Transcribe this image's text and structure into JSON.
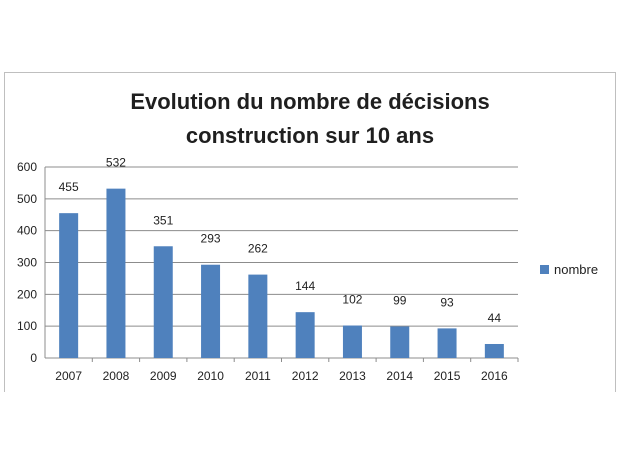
{
  "chart_data": {
    "type": "bar",
    "title_lines": [
      "Evolution du nombre de décisions",
      "construction sur 10 ans"
    ],
    "categories": [
      "2007",
      "2008",
      "2009",
      "2010",
      "2011",
      "2012",
      "2013",
      "2014",
      "2015",
      "2016"
    ],
    "series": [
      {
        "name": "nombre",
        "values": [
          455,
          532,
          351,
          293,
          262,
          144,
          102,
          99,
          93,
          44
        ]
      }
    ],
    "y_ticks": [
      "0",
      "100",
      "200",
      "300",
      "400",
      "500",
      "600"
    ],
    "ylim": [
      0,
      600
    ],
    "xlabel": "",
    "ylabel": "",
    "grid": true,
    "legend_position": "right",
    "bar_color": "#4f81bd",
    "grid_color": "#8c8c8c"
  }
}
